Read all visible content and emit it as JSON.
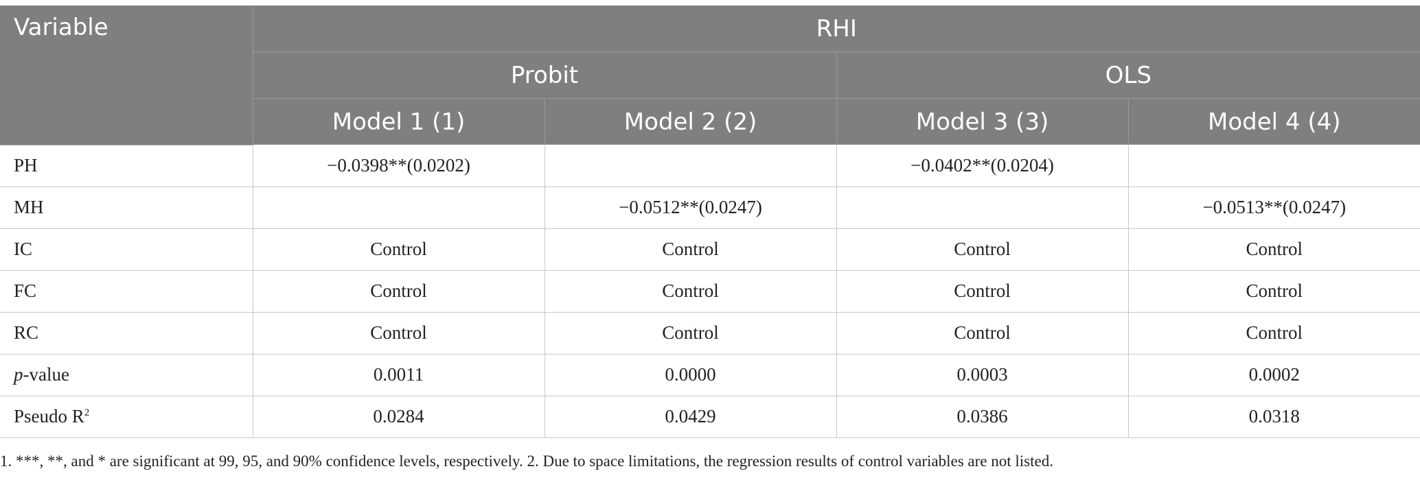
{
  "table": {
    "header": {
      "variable_label": "Variable",
      "group_label": "RHI",
      "methods": [
        "Probit",
        "OLS"
      ],
      "models": [
        "Model 1 (1)",
        "Model 2 (2)",
        "Model 3 (3)",
        "Model 4 (4)"
      ]
    },
    "rows": [
      {
        "label": "PH",
        "cells": [
          "−0.0398**(0.0202)",
          "",
          "−0.0402**(0.0204)",
          ""
        ]
      },
      {
        "label": "MH",
        "cells": [
          "",
          "−0.0512**(0.0247)",
          "",
          "−0.0513**(0.0247)"
        ]
      },
      {
        "label": "IC",
        "cells": [
          "Control",
          "Control",
          "Control",
          "Control"
        ]
      },
      {
        "label": "FC",
        "cells": [
          "Control",
          "Control",
          "Control",
          "Control"
        ]
      },
      {
        "label": "RC",
        "cells": [
          "Control",
          "Control",
          "Control",
          "Control"
        ]
      },
      {
        "label_italic": "p",
        "label_rest": "-value",
        "cells": [
          "0.0011",
          "0.0000",
          "0.0003",
          "0.0002"
        ]
      },
      {
        "label_base": "Pseudo R",
        "label_sup": "2",
        "cells": [
          "0.0284",
          "0.0429",
          "0.0386",
          "0.0318"
        ]
      }
    ]
  },
  "footnote": "1. ***, **, and * are significant at 99, 95, and 90% confidence levels, respectively. 2. Due to space limitations, the regression results of control variables are not listed.",
  "colors": {
    "header_bg": "#7f7f7f",
    "header_text": "#ffffff",
    "grid_line": "#c8c8c8"
  }
}
